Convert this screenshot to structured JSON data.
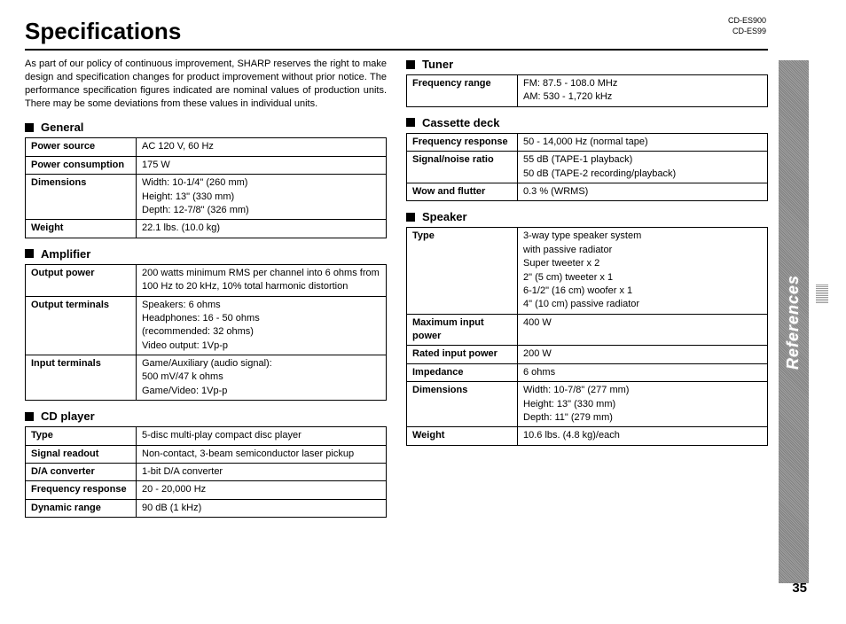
{
  "page_title": "Specifications",
  "model_ids": [
    "CD-ES900",
    "CD-ES99"
  ],
  "side_tab": "References",
  "page_number": "35",
  "intro": "As part of our policy of continuous improvement, SHARP reserves the right to make design and specification changes for product improvement without prior notice. The performance specification figures indicated are nominal values of production units. There may be some deviations from these values in individual units.",
  "sections": {
    "general": {
      "title": "General",
      "rows": [
        {
          "label": "Power source",
          "value": "AC 120 V, 60 Hz"
        },
        {
          "label": "Power consumption",
          "value": "175 W"
        },
        {
          "label": "Dimensions",
          "value": "Width: 10-1/4\" (260 mm)\nHeight: 13\" (330 mm)\nDepth: 12-7/8\" (326 mm)"
        },
        {
          "label": "Weight",
          "value": "22.1 lbs. (10.0 kg)"
        }
      ]
    },
    "amplifier": {
      "title": "Amplifier",
      "rows": [
        {
          "label": "Output power",
          "value": "200 watts minimum RMS per channel into 6 ohms from 100 Hz to 20 kHz, 10% total harmonic distortion"
        },
        {
          "label": "Output terminals",
          "value": "Speakers: 6 ohms\nHeadphones: 16 - 50 ohms\n(recommended: 32 ohms)\nVideo output: 1Vp-p"
        },
        {
          "label": "Input terminals",
          "value": "Game/Auxiliary (audio signal):\n500 mV/47 k ohms\nGame/Video: 1Vp-p"
        }
      ]
    },
    "cd": {
      "title": "CD player",
      "rows": [
        {
          "label": "Type",
          "value": "5-disc multi-play compact disc player"
        },
        {
          "label": "Signal readout",
          "value": "Non-contact, 3-beam semiconductor laser pickup"
        },
        {
          "label": "D/A converter",
          "value": "1-bit D/A converter"
        },
        {
          "label": "Frequency response",
          "value": "20 - 20,000 Hz"
        },
        {
          "label": "Dynamic range",
          "value": "90 dB (1 kHz)"
        }
      ]
    },
    "tuner": {
      "title": "Tuner",
      "rows": [
        {
          "label": "Frequency range",
          "value": "FM: 87.5 - 108.0 MHz\nAM: 530 - 1,720 kHz"
        }
      ]
    },
    "cassette": {
      "title": "Cassette deck",
      "rows": [
        {
          "label": "Frequency response",
          "value": "50 - 14,000 Hz (normal tape)"
        },
        {
          "label": "Signal/noise ratio",
          "value": "55 dB (TAPE-1 playback)\n50 dB (TAPE-2 recording/playback)"
        },
        {
          "label": "Wow and flutter",
          "value": "0.3 % (WRMS)"
        }
      ]
    },
    "speaker": {
      "title": "Speaker",
      "rows": [
        {
          "label": "Type",
          "value": "3-way type speaker system\nwith passive radiator\nSuper tweeter x 2\n2\"  (5 cm) tweeter x 1\n6-1/2\" (16 cm) woofer x 1\n4\" (10 cm) passive radiator"
        },
        {
          "label": "Maximum input power",
          "value": "400 W"
        },
        {
          "label": "Rated input power",
          "value": "200 W"
        },
        {
          "label": "Impedance",
          "value": "6 ohms"
        },
        {
          "label": "Dimensions",
          "value": "Width: 10-7/8\" (277 mm)\nHeight: 13\" (330 mm)\nDepth: 11\" (279 mm)"
        },
        {
          "label": "Weight",
          "value": "10.6 lbs. (4.8 kg)/each"
        }
      ]
    }
  }
}
